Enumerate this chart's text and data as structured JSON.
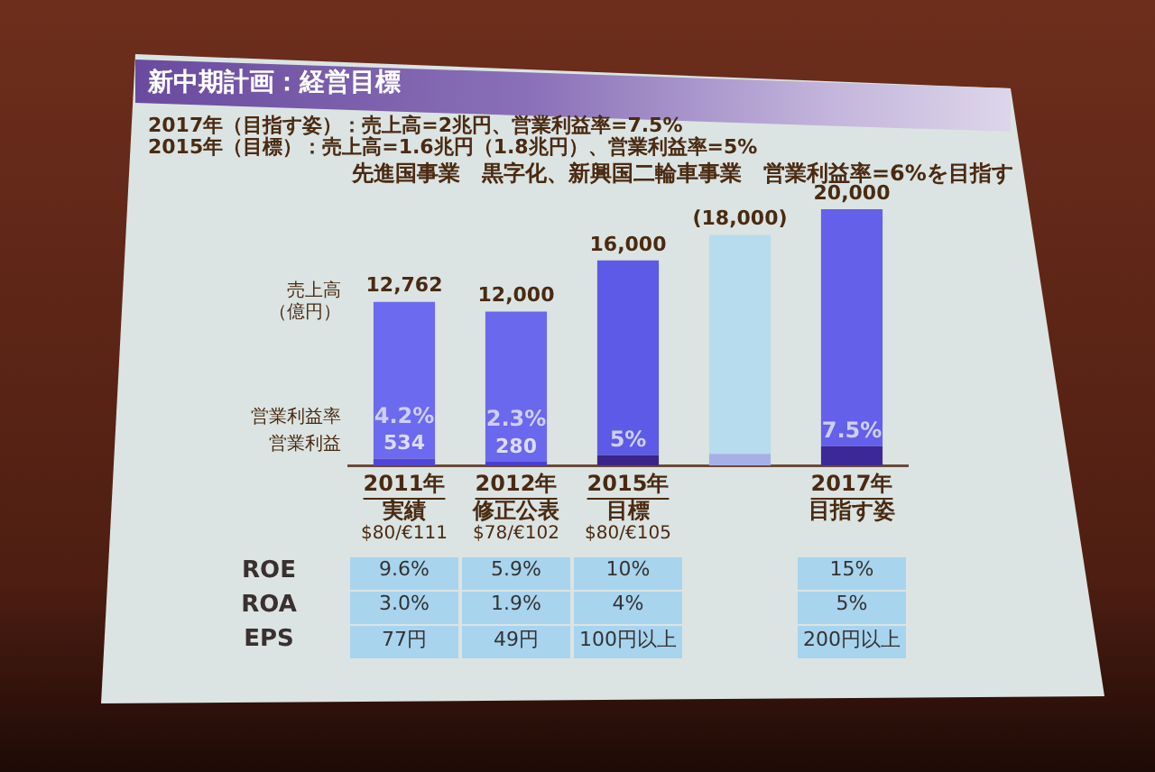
{
  "chart_data": [
    {
      "type": "bar",
      "title": "新中期計画：経営目標",
      "ylabel": "売上高（億円）",
      "annotations": [
        "2017年（目指す姿）：売上高=2兆円、営業利益率=7.5%",
        "2015年（目標）：売上高=1.6兆円（1.8兆円）、営業利益率=5%",
        "先進国事業　黒字化、新興国二輪車事業　営業利益率=6%を目指す",
        "営業利益率",
        {
          "text": "4.2%",
          "x": "2011年実績$80/€111",
          "y": 534
        },
        {
          "text": "2.3%",
          "x": "2012年修正公表$78/€102",
          "y": 280
        },
        {
          "text": "5%",
          "x": "2015年目標$80/€105",
          "y": 800
        },
        {
          "text": "7.5%",
          "x": "2017年目指す姿",
          "y": 1500
        }
      ],
      "categories": [
        "2011年実績$80/€111",
        "2012年修正公表$78/€102",
        "2015年目標$80/€105",
        null,
        "2017年目指す姿"
      ],
      "stacked": true,
      "tick_labels": "x",
      "series": [
        {
          "name": "営業利益",
          "colors": [
            "#5246d8",
            "#4a3ed2",
            "#3a2488",
            "#a6b0e6",
            "#3c2896"
          ],
          "values": [
            534,
            280,
            800,
            900,
            1500
          ],
          "value_labels": [
            "534",
            "280",
            null,
            null,
            null
          ]
        },
        {
          "colors": [
            "#6c6aee",
            "#6a68ec",
            "#5c5ae6",
            "#b6dcee",
            "#6460ea"
          ],
          "values": [
            12228,
            11720,
            15200,
            17100,
            18500
          ]
        }
      ],
      "totals": [
        "12,762",
        "12,000",
        "16,000",
        "(18,000)",
        "20,000"
      ]
    },
    {
      "type": "other",
      "y_categories": [
        "ROE",
        "ROA",
        "EPS"
      ],
      "cell_labels": [
        [
          "9.6%",
          "5.9%",
          "10%",
          null,
          "15%"
        ],
        [
          "3.0%",
          "1.9%",
          "4%",
          null,
          "5%"
        ],
        [
          "77円",
          "49円",
          "100円以上",
          null,
          "200円以上"
        ]
      ]
    }
  ]
}
